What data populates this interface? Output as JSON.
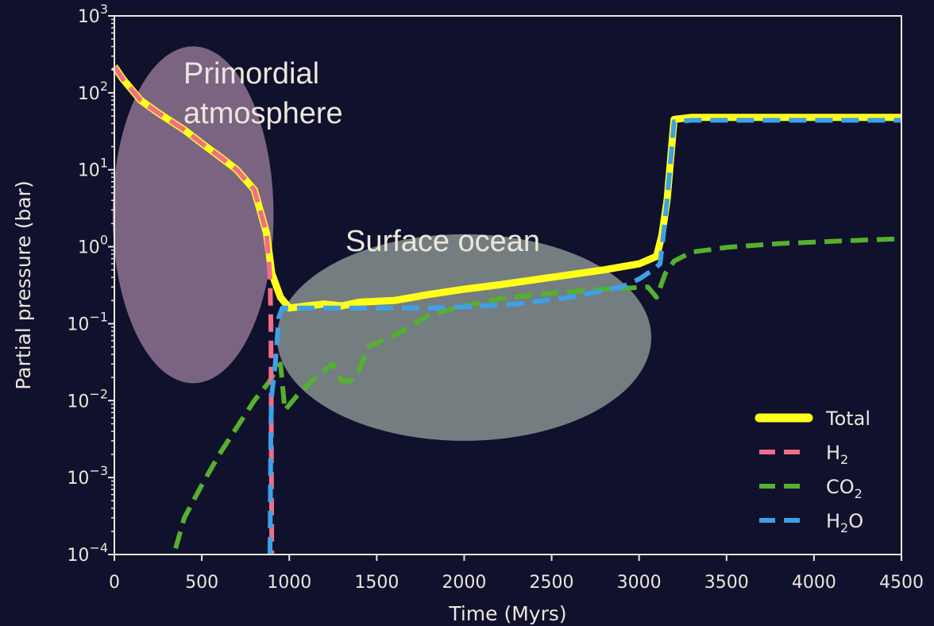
{
  "chart_data": {
    "type": "line",
    "xlabel": "Time (Myrs)",
    "ylabel": "Partial pressure (bar)",
    "xlim": [
      0,
      4500
    ],
    "ylim": [
      0.0001,
      1000
    ],
    "yscale": "log",
    "x_ticks": [
      "0",
      "500",
      "1000",
      "1500",
      "2000",
      "2500",
      "3000",
      "3500",
      "4000",
      "4500"
    ],
    "y_ticks": [
      {
        "base": "10",
        "exp": "3"
      },
      {
        "base": "10",
        "exp": "2"
      },
      {
        "base": "10",
        "exp": "1"
      },
      {
        "base": "10",
        "exp": "0"
      },
      {
        "base": "10",
        "exp": "−1"
      },
      {
        "base": "10",
        "exp": "−2"
      },
      {
        "base": "10",
        "exp": "−3"
      },
      {
        "base": "10",
        "exp": "−4"
      }
    ],
    "grid": false,
    "legend_position": "lower-right",
    "annotations": [
      {
        "lines": [
          "Primordial",
          "atmosphere"
        ]
      },
      {
        "lines": [
          "Surface ocean"
        ]
      }
    ],
    "regions": [
      {
        "x_center": 450,
        "y_center": 2.6,
        "x_half_width": 460,
        "color": "#e6b8d8"
      },
      {
        "x_center": 2000,
        "y_center": 0.066,
        "x_half_width": 1070,
        "color": "#d8ecd4"
      }
    ],
    "series": [
      {
        "name": "Total",
        "sub": "",
        "name_after": "",
        "color": "#ffff1a",
        "dash": "solid",
        "width": 9,
        "points": [
          [
            0,
            220
          ],
          [
            50,
            150
          ],
          [
            150,
            80
          ],
          [
            250,
            55
          ],
          [
            400,
            33
          ],
          [
            500,
            22
          ],
          [
            600,
            15
          ],
          [
            700,
            10
          ],
          [
            800,
            5.5
          ],
          [
            870,
            1.5
          ],
          [
            900,
            0.45
          ],
          [
            950,
            0.22
          ],
          [
            1000,
            0.16
          ],
          [
            1100,
            0.17
          ],
          [
            1200,
            0.18
          ],
          [
            1300,
            0.17
          ],
          [
            1400,
            0.19
          ],
          [
            1600,
            0.2
          ],
          [
            1800,
            0.24
          ],
          [
            2000,
            0.28
          ],
          [
            2200,
            0.32
          ],
          [
            2500,
            0.4
          ],
          [
            2800,
            0.5
          ],
          [
            3000,
            0.6
          ],
          [
            3100,
            0.75
          ],
          [
            3130,
            1.4
          ],
          [
            3160,
            4
          ],
          [
            3200,
            45
          ],
          [
            3300,
            48
          ],
          [
            4500,
            48
          ]
        ]
      },
      {
        "name": "H",
        "sub": "2",
        "name_after": "",
        "color": "#f06e88",
        "dash": "dashed",
        "width": 6,
        "points": [
          [
            0,
            220
          ],
          [
            50,
            150
          ],
          [
            150,
            80
          ],
          [
            250,
            55
          ],
          [
            400,
            33
          ],
          [
            500,
            22
          ],
          [
            600,
            15
          ],
          [
            700,
            10
          ],
          [
            800,
            5.5
          ],
          [
            870,
            1.5
          ],
          [
            890,
            0.4
          ],
          [
            895,
            0.1
          ],
          [
            900,
            0.0001
          ]
        ]
      },
      {
        "name": "CO",
        "sub": "2",
        "name_after": "",
        "color": "#55b02e",
        "dash": "dashed",
        "width": 6,
        "points": [
          [
            350,
            0.00012
          ],
          [
            400,
            0.0003
          ],
          [
            500,
            0.0008
          ],
          [
            600,
            0.002
          ],
          [
            700,
            0.0045
          ],
          [
            800,
            0.01
          ],
          [
            880,
            0.017
          ],
          [
            950,
            0.03
          ],
          [
            975,
            0.0075
          ],
          [
            1050,
            0.012
          ],
          [
            1150,
            0.02
          ],
          [
            1250,
            0.03
          ],
          [
            1300,
            0.018
          ],
          [
            1350,
            0.018
          ],
          [
            1400,
            0.025
          ],
          [
            1450,
            0.05
          ],
          [
            1600,
            0.07
          ],
          [
            1800,
            0.13
          ],
          [
            2000,
            0.17
          ],
          [
            2200,
            0.21
          ],
          [
            2500,
            0.25
          ],
          [
            2800,
            0.28
          ],
          [
            3050,
            0.3
          ],
          [
            3100,
            0.22
          ],
          [
            3150,
            0.45
          ],
          [
            3200,
            0.65
          ],
          [
            3300,
            0.85
          ],
          [
            3500,
            0.98
          ],
          [
            3800,
            1.1
          ],
          [
            4200,
            1.2
          ],
          [
            4500,
            1.27
          ]
        ]
      },
      {
        "name": "H",
        "sub": "2",
        "name_after": "O",
        "color": "#3fa0e6",
        "dash": "dashed",
        "width": 6,
        "points": [
          [
            890,
            0.0001
          ],
          [
            895,
            0.005
          ],
          [
            900,
            0.012
          ],
          [
            920,
            0.03
          ],
          [
            940,
            0.12
          ],
          [
            960,
            0.16
          ],
          [
            1000,
            0.16
          ],
          [
            1200,
            0.16
          ],
          [
            1500,
            0.16
          ],
          [
            1800,
            0.16
          ],
          [
            2000,
            0.165
          ],
          [
            2300,
            0.18
          ],
          [
            2600,
            0.22
          ],
          [
            2900,
            0.3
          ],
          [
            3000,
            0.38
          ],
          [
            3080,
            0.5
          ],
          [
            3120,
            0.6
          ],
          [
            3140,
            1.5
          ],
          [
            3160,
            4
          ],
          [
            3200,
            42
          ],
          [
            3300,
            44
          ],
          [
            4500,
            44
          ]
        ]
      }
    ]
  }
}
